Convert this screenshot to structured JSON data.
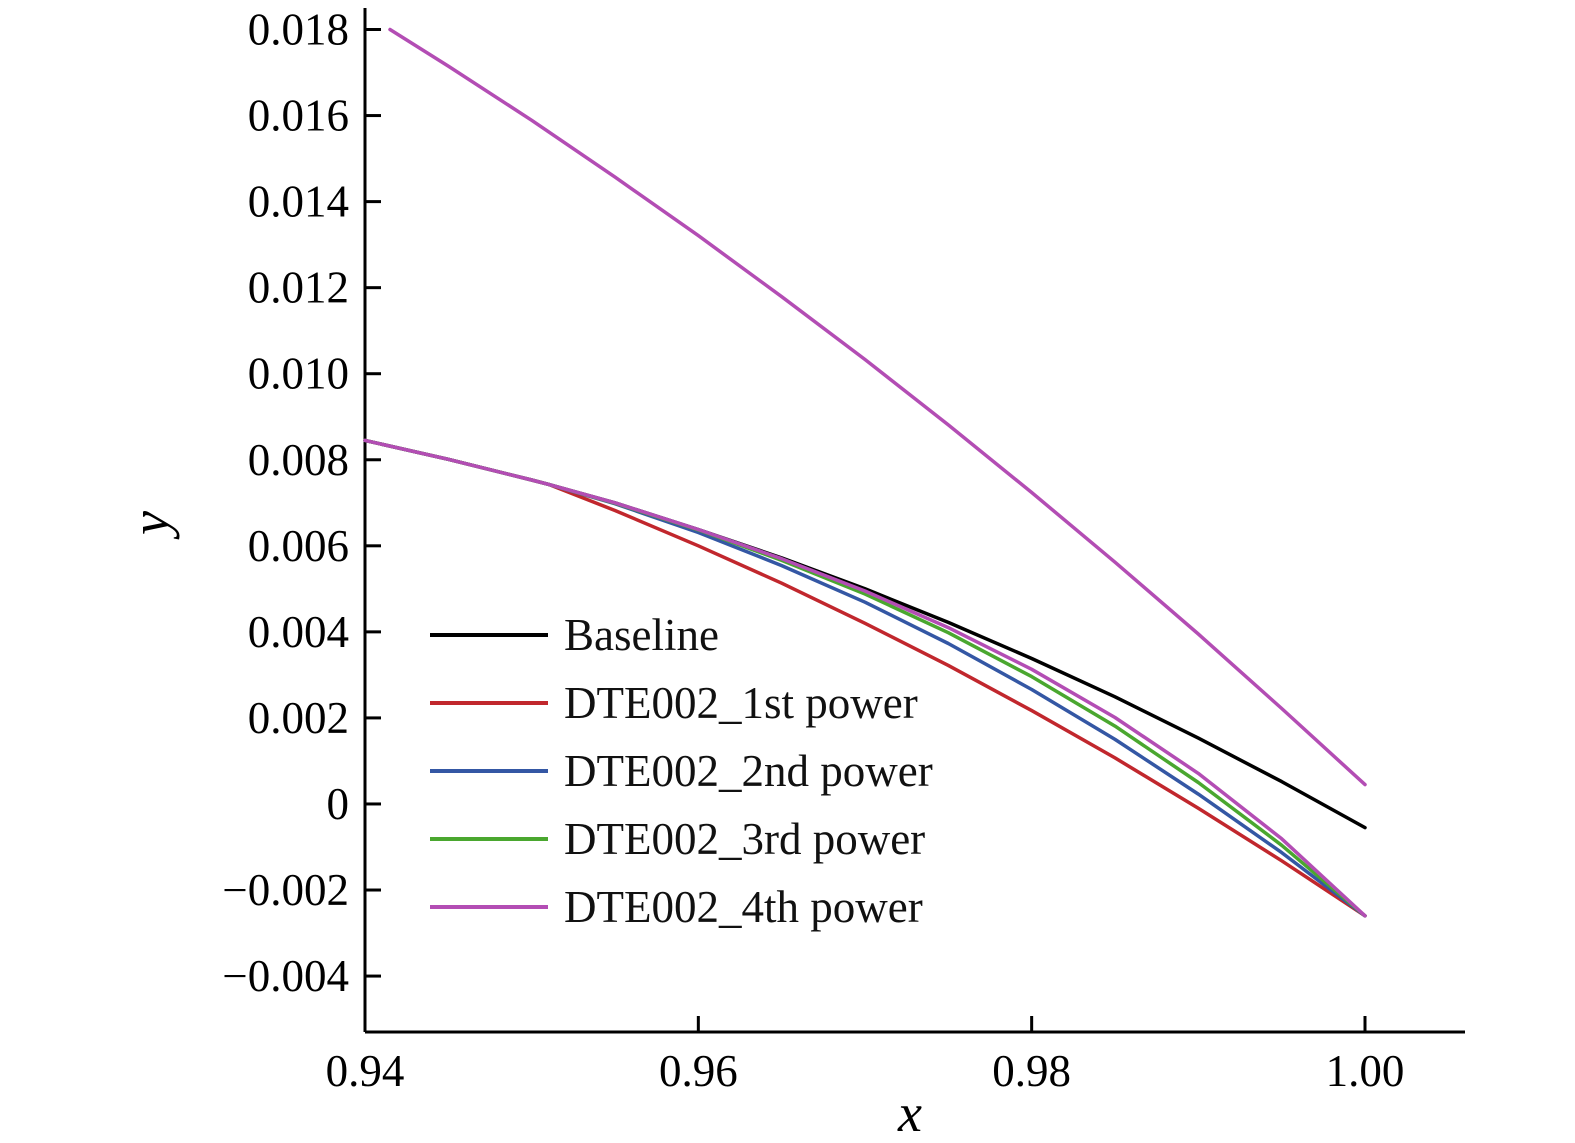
{
  "chart_data": {
    "type": "line",
    "title": "",
    "xlabel": "x",
    "ylabel": "y",
    "xlim": [
      0.94,
      1.006
    ],
    "ylim": [
      -0.0053,
      0.0185
    ],
    "grid": false,
    "legend_position": "inside lower-left",
    "axis_color": "#000000",
    "xticks": {
      "values": [
        0.94,
        0.96,
        0.98,
        1.0
      ],
      "labels": [
        "0.94",
        "0.96",
        "0.98",
        "1.00"
      ]
    },
    "yticks": {
      "values": [
        0.018,
        0.016,
        0.014,
        0.012,
        0.01,
        0.008,
        0.006,
        0.004,
        0.002,
        0,
        -0.002,
        -0.004
      ],
      "labels": [
        "0.018",
        "0.016",
        "0.014",
        "0.012",
        "0.010",
        "0.008",
        "0.006",
        "0.004",
        "0.002",
        "0",
        "−0.002",
        "−0.004"
      ]
    },
    "upper_curve": {
      "note": "upper-surface curve where all five series coincide; visible color is the last-drawn series (DTE002_4th power)",
      "color": "#b34db4",
      "points": [
        [
          0.9415,
          0.018
        ],
        [
          0.945,
          0.01715
        ],
        [
          0.95,
          0.01589
        ],
        [
          0.955,
          0.01457
        ],
        [
          0.96,
          0.01321
        ],
        [
          0.965,
          0.01179
        ],
        [
          0.97,
          0.01033
        ],
        [
          0.975,
          0.00881
        ],
        [
          0.98,
          0.00724
        ],
        [
          0.985,
          0.00562
        ],
        [
          0.99,
          0.00395
        ],
        [
          0.995,
          0.00222
        ],
        [
          1.0,
          0.00045
        ]
      ]
    },
    "series": [
      {
        "name": "Baseline",
        "color": "#000000",
        "points": [
          [
            0.94,
            0.00845
          ],
          [
            0.945,
            0.00801
          ],
          [
            0.95,
            0.00753
          ],
          [
            0.951,
            0.00743
          ],
          [
            0.955,
            0.007
          ],
          [
            0.96,
            0.00638
          ],
          [
            0.965,
            0.00572
          ],
          [
            0.97,
            0.005
          ],
          [
            0.975,
            0.00422
          ],
          [
            0.98,
            0.00338
          ],
          [
            0.985,
            0.00249
          ],
          [
            0.99,
            0.00153
          ],
          [
            0.995,
            0.00052
          ],
          [
            1.0,
            -0.00055
          ]
        ]
      },
      {
        "name": "DTE002_1st power",
        "color": "#c1272d",
        "points": [
          [
            0.94,
            0.00845
          ],
          [
            0.945,
            0.00801
          ],
          [
            0.95,
            0.00753
          ],
          [
            0.951,
            0.00743
          ],
          [
            0.955,
            0.00682
          ],
          [
            0.96,
            0.006
          ],
          [
            0.965,
            0.00513
          ],
          [
            0.97,
            0.0042
          ],
          [
            0.975,
            0.00322
          ],
          [
            0.98,
            0.00217
          ],
          [
            0.985,
            0.00107
          ],
          [
            0.99,
            -0.0001
          ],
          [
            0.995,
            -0.00132
          ],
          [
            1.0,
            -0.0026
          ]
        ]
      },
      {
        "name": "DTE002_2nd power",
        "color": "#3457a4",
        "points": [
          [
            0.94,
            0.00845
          ],
          [
            0.945,
            0.00801
          ],
          [
            0.95,
            0.00753
          ],
          [
            0.951,
            0.00743
          ],
          [
            0.955,
            0.00698
          ],
          [
            0.96,
            0.00631
          ],
          [
            0.965,
            0.00554
          ],
          [
            0.97,
            0.00469
          ],
          [
            0.975,
            0.00373
          ],
          [
            0.98,
            0.00266
          ],
          [
            0.985,
            0.0015
          ],
          [
            0.99,
            0.00023
          ],
          [
            0.995,
            -0.00113
          ],
          [
            1.0,
            -0.0026
          ]
        ]
      },
      {
        "name": "DTE002_3rd power",
        "color": "#4aa72f",
        "points": [
          [
            0.94,
            0.00845
          ],
          [
            0.945,
            0.00801
          ],
          [
            0.95,
            0.00753
          ],
          [
            0.951,
            0.00743
          ],
          [
            0.955,
            0.00699
          ],
          [
            0.96,
            0.00637
          ],
          [
            0.965,
            0.00566
          ],
          [
            0.97,
            0.00488
          ],
          [
            0.975,
            0.00398
          ],
          [
            0.98,
            0.00296
          ],
          [
            0.985,
            0.00181
          ],
          [
            0.99,
            0.0005
          ],
          [
            0.995,
            -0.00096
          ],
          [
            1.0,
            -0.0026
          ]
        ]
      },
      {
        "name": "DTE002_4th power",
        "color": "#b34db4",
        "points": [
          [
            0.94,
            0.00845
          ],
          [
            0.945,
            0.00801
          ],
          [
            0.95,
            0.00753
          ],
          [
            0.951,
            0.00743
          ],
          [
            0.955,
            0.007
          ],
          [
            0.96,
            0.00638
          ],
          [
            0.965,
            0.0057
          ],
          [
            0.97,
            0.00495
          ],
          [
            0.975,
            0.0041
          ],
          [
            0.98,
            0.00313
          ],
          [
            0.985,
            0.00201
          ],
          [
            0.99,
            0.00071
          ],
          [
            0.995,
            -0.00081
          ],
          [
            1.0,
            -0.0026
          ]
        ]
      }
    ]
  }
}
